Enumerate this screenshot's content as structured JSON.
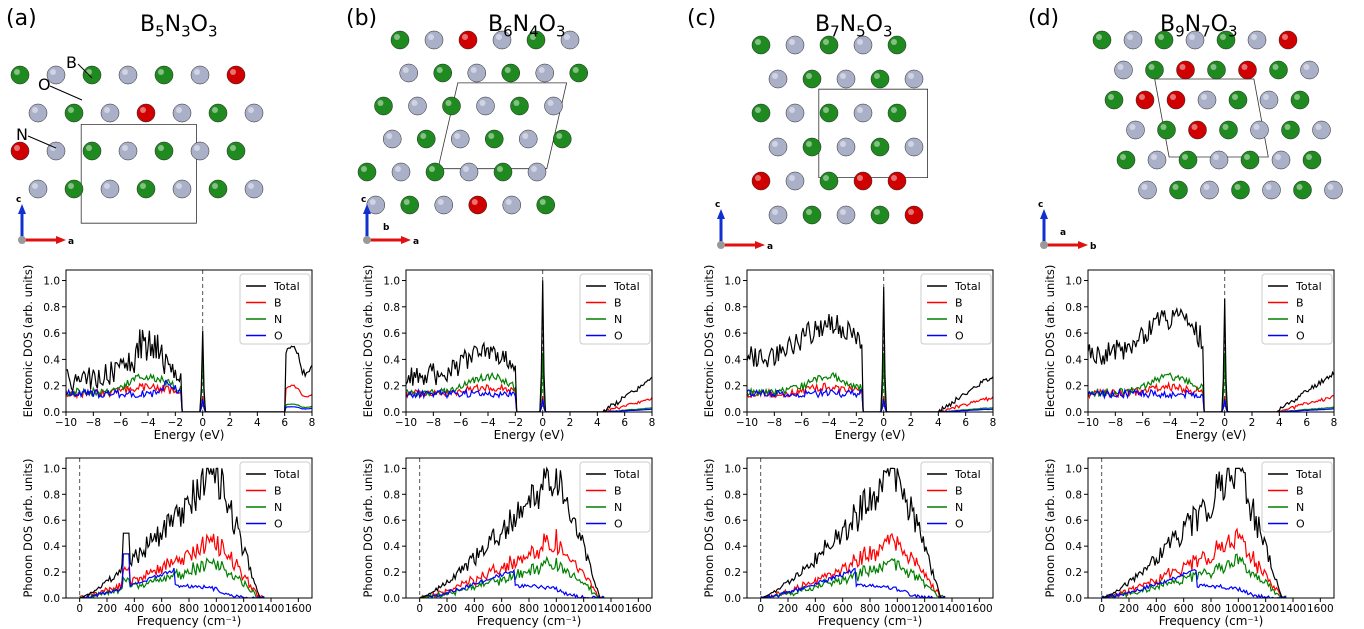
{
  "panels": [
    {
      "label": "(a)",
      "formula": [
        {
          "t": "B"
        },
        {
          "s": "5"
        },
        {
          "t": "N"
        },
        {
          "s": "3"
        },
        {
          "t": "O"
        },
        {
          "s": "3"
        }
      ],
      "atom_labels": [
        "B",
        "O",
        "N"
      ],
      "axes_labels": [
        "c",
        "a"
      ],
      "ediamond": [
        0.62,
        0.36,
        0.2,
        0.1
      ],
      "phmax": 0.98
    },
    {
      "label": "(b)",
      "formula": [
        {
          "t": "B"
        },
        {
          "s": "6"
        },
        {
          "t": "N"
        },
        {
          "s": "4"
        },
        {
          "t": "O"
        },
        {
          "s": "3"
        }
      ],
      "atom_labels": [],
      "axes_labels": [
        "c",
        "a",
        "b"
      ],
      "phmax": 1.0
    },
    {
      "label": "(c)",
      "formula": [
        {
          "t": "B"
        },
        {
          "s": "7"
        },
        {
          "t": "N"
        },
        {
          "s": "5"
        },
        {
          "t": "O"
        },
        {
          "s": "3"
        }
      ],
      "atom_labels": [],
      "axes_labels": [
        "c",
        "a"
      ],
      "phmax": 1.0
    },
    {
      "label": "(d)",
      "formula": [
        {
          "t": "B"
        },
        {
          "s": "9"
        },
        {
          "t": "N"
        },
        {
          "s": "7"
        },
        {
          "t": "O"
        },
        {
          "s": "3"
        }
      ],
      "atom_labels": [],
      "axes_labels": [
        "c",
        "b",
        "a"
      ],
      "phmax": 1.0
    }
  ],
  "legend": [
    "Total",
    "B",
    "N",
    "O"
  ],
  "colors": {
    "Total": "#000000",
    "B": "#ff0000",
    "N": "#008000",
    "O": "#0000ff",
    "boron": "#1f8a1f",
    "nitrogen": "#aab0c8",
    "oxygen": "#d10000",
    "axis_c": "#1030d0",
    "axis_a": "#e01010",
    "axis_b": "#20b020"
  },
  "chart_data": [
    {
      "type": "line",
      "name": "electronic_dos",
      "xlabel": "Energy (eV)",
      "ylabel": "Electronic DOS (arb. units)",
      "xlim": [
        -10,
        8
      ],
      "ylim": [
        0,
        1.08
      ],
      "xticks": [
        -10,
        -8,
        -6,
        -4,
        -2,
        0,
        2,
        4,
        6,
        8
      ],
      "yticks": [
        0.0,
        0.2,
        0.4,
        0.6,
        0.8,
        1.0
      ],
      "fermi_level": 0,
      "series": [
        "Total",
        "B",
        "N",
        "O"
      ],
      "legend_position": "top-right"
    },
    {
      "type": "line",
      "name": "phonon_dos",
      "xlabel": "Frequency (cm⁻¹)",
      "ylabel": "Phonon DOS (arb. units)",
      "xlim": [
        -100,
        1700
      ],
      "ylim": [
        0,
        1.08
      ],
      "xticks": [
        0,
        200,
        400,
        600,
        800,
        1000,
        1200,
        1400,
        1600
      ],
      "yticks": [
        0.0,
        0.2,
        0.4,
        0.6,
        0.8,
        1.0
      ],
      "zero_line": 0,
      "series": [
        "Total",
        "B",
        "N",
        "O"
      ],
      "legend_position": "top-right"
    }
  ]
}
